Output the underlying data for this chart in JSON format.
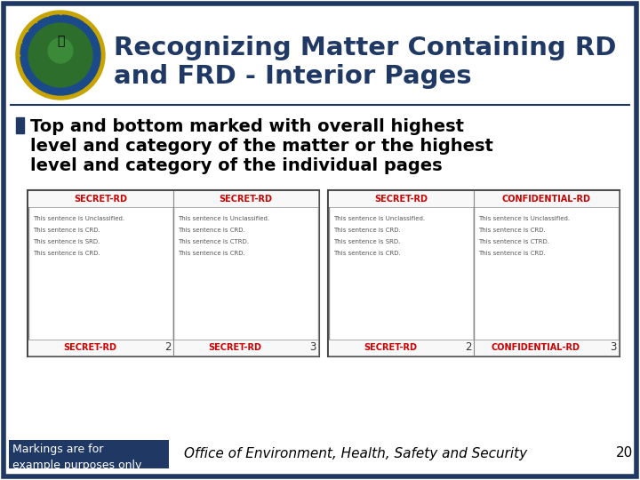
{
  "background_color": "#ffffff",
  "border_color": "#1f3864",
  "border_width": 4,
  "title_line1": "Recognizing Matter Containing RD",
  "title_line2": "and FRD - Interior Pages",
  "title_color": "#1f3864",
  "title_fontsize": 21,
  "bullet_text_line1": "Top and bottom marked with overall highest",
  "bullet_text_line2": "level and category of the matter or the highest",
  "bullet_text_line3": "level and category of the individual pages",
  "bullet_color": "#1f3864",
  "bullet_text_color": "#000000",
  "bullet_fontsize": 14,
  "footer_text": "Office of Environment, Health, Safety and Security",
  "footer_page": "20",
  "footer_color": "#000000",
  "footer_fontsize": 11,
  "markings_note": "Markings are for\nexample purposes only",
  "markings_bg": "#1f3864",
  "markings_color": "#ffffff",
  "markings_fontsize": 9,
  "doc_panels": [
    {
      "pages": [
        {
          "top_label": "SECRET-RD",
          "bottom_label": "SECRET-RD",
          "page_num": "2",
          "lines": [
            "This sentence is Unclassified.",
            "This sentence is CRD.",
            "This sentence is SRD.",
            "This sentence is CRD."
          ]
        },
        {
          "top_label": "SECRET-RD",
          "bottom_label": "SECRET-RD",
          "page_num": "3",
          "lines": [
            "This sentence is Unclassified.",
            "This sentence is CRD.",
            "This sentence is CTRD.",
            "This sentence is CRD."
          ]
        }
      ]
    },
    {
      "pages": [
        {
          "top_label": "SECRET-RD",
          "bottom_label": "SECRET-RD",
          "page_num": "2",
          "lines": [
            "This sentence is Unclassified.",
            "This sentence is CRD.",
            "This sentence is SRD.",
            "This sentence is CRD."
          ]
        },
        {
          "top_label": "CONFIDENTIAL-RD",
          "bottom_label": "CONFIDENTIAL-RD",
          "page_num": "3",
          "lines": [
            "This sentence is Unclassified.",
            "This sentence is CRD.",
            "This sentence is CTRD.",
            "This sentence is CRD."
          ]
        }
      ]
    }
  ],
  "label_color": "#cc0000",
  "label_fontsize": 7.0,
  "line_text_color": "#555555",
  "line_fontsize": 5.0,
  "doc_border_color": "#888888",
  "doc_bg_color": "#ffffff",
  "seal_gold": "#c8a400",
  "seal_blue": "#1a4a8a",
  "seal_green": "#2d6e2d"
}
